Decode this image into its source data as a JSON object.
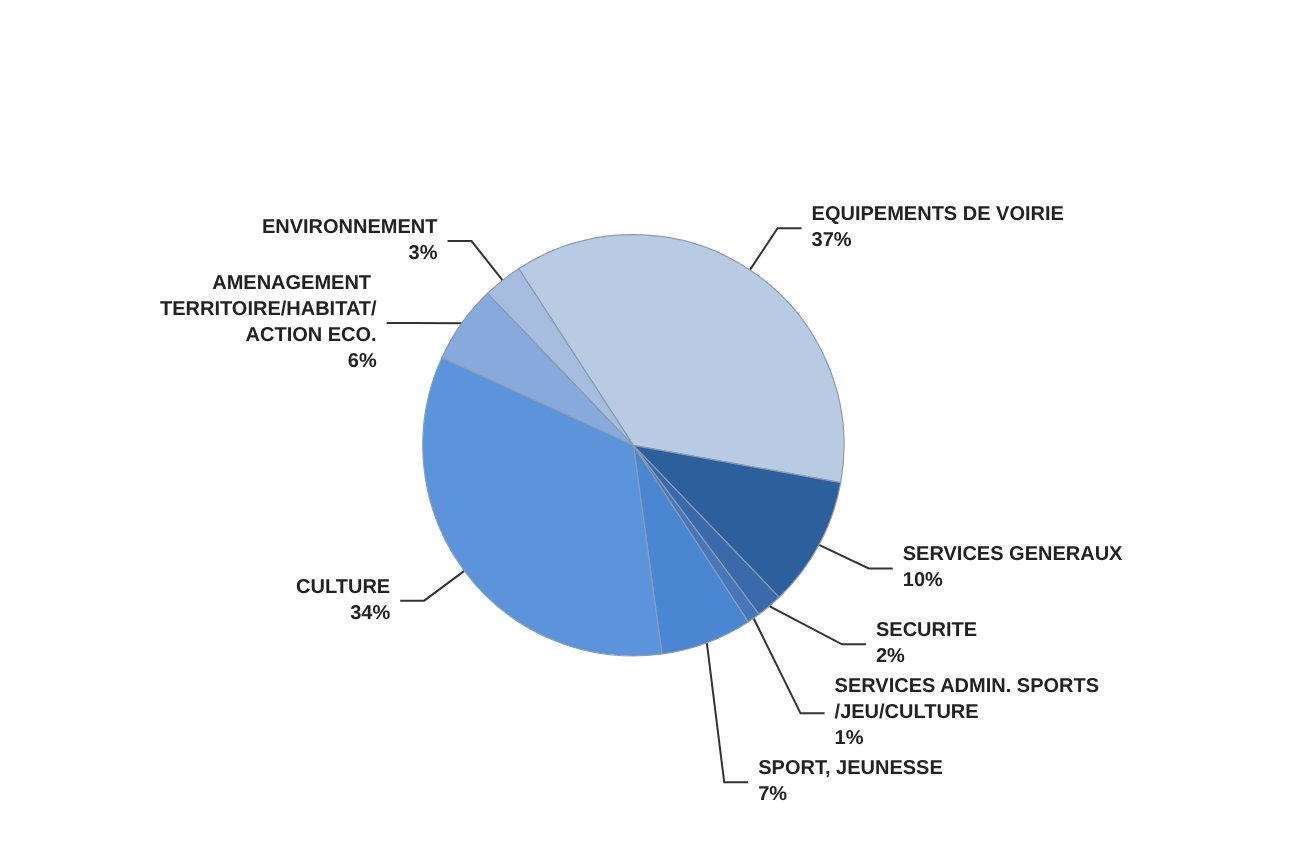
{
  "chart_data": {
    "type": "pie",
    "categories": [
      "EQUIPEMENTS DE VOIRIE",
      "SERVICES GENERAUX",
      "SECURITE",
      "SERVICES ADMIN. SPORTS/JEU/CULTURE",
      "SPORT, JEUNESSE",
      "CULTURE",
      "AMENAGEMENT TERRITOIRE/HABITAT/ACTION ECO.",
      "ENVIRONNEMENT"
    ],
    "values": [
      37,
      10,
      2,
      1,
      7,
      34,
      6,
      3
    ],
    "value_labels": [
      "37%",
      "10%",
      "2%",
      "1%",
      "7%",
      "34%",
      "6%",
      "3%"
    ],
    "colors": [
      "#b9cae3",
      "#2d5f9c",
      "#3a6aab",
      "#4677bb",
      "#4a86d2",
      "#5b94da",
      "#87a9dc",
      "#a7bde0"
    ]
  }
}
